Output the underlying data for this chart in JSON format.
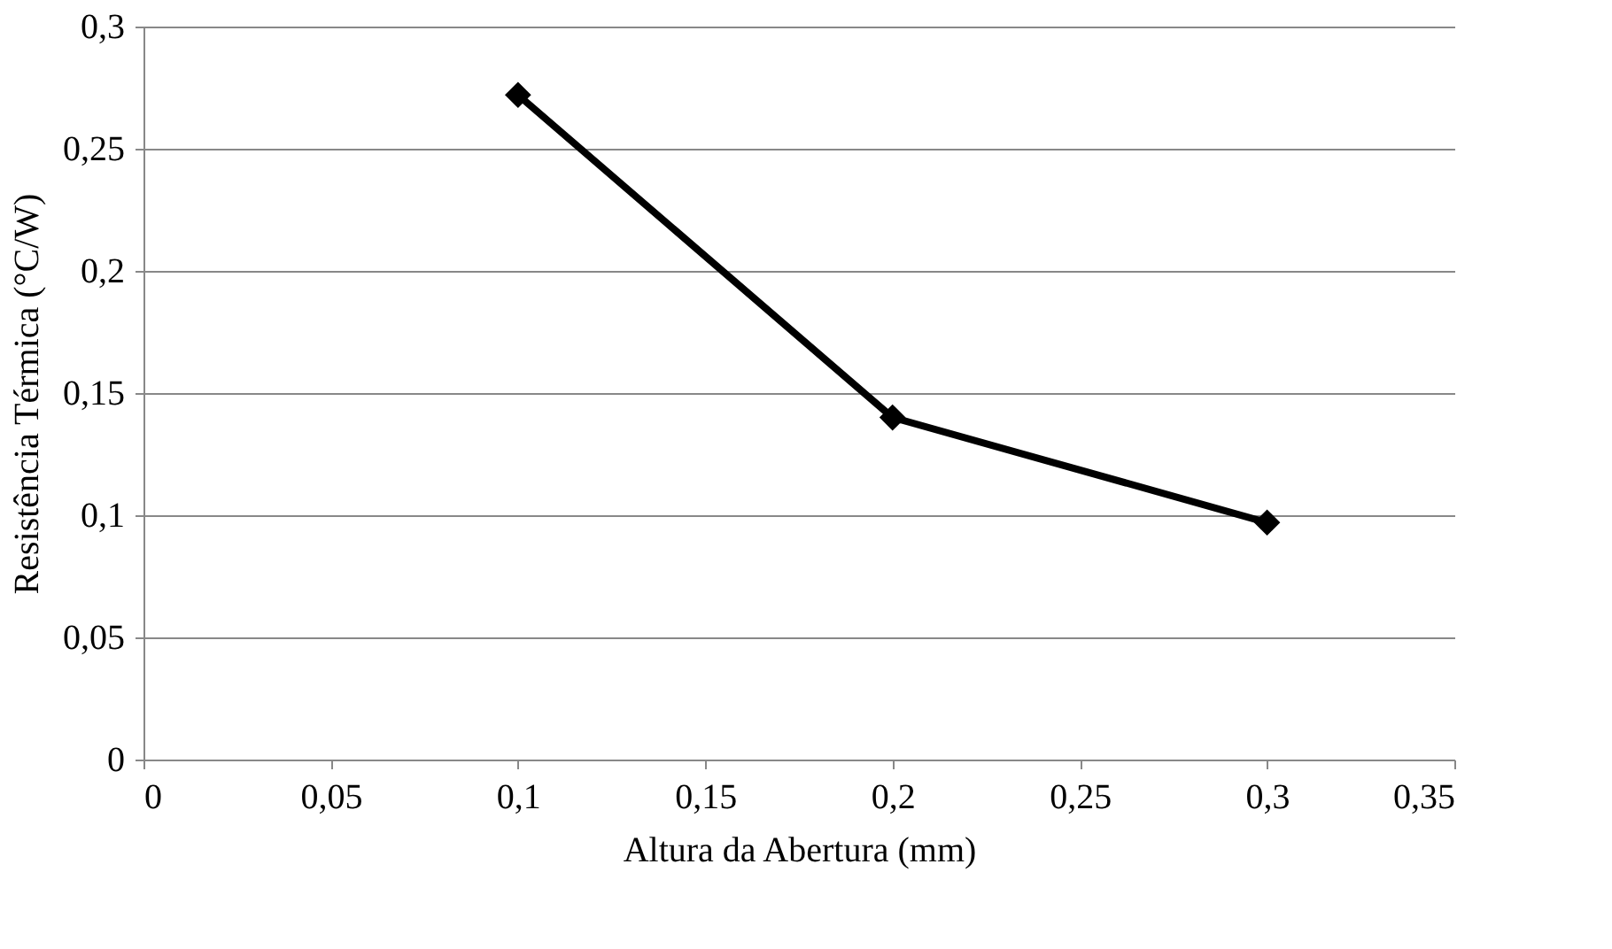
{
  "chart_data": {
    "type": "line",
    "xlabel": "Altura da Abertura (mm)",
    "ylabel": "Resistência Térmica (°C/W)",
    "x": [
      0.1,
      0.2,
      0.3
    ],
    "series": [
      {
        "color": "#000000",
        "values": [
          0.272,
          0.14,
          0.097
        ]
      }
    ],
    "xlim": [
      0,
      0.35
    ],
    "ylim": [
      0,
      0.3
    ],
    "xticks": [
      0,
      {
        "value": 0.05,
        "label": "0,05"
      },
      {
        "value": 0.1,
        "label": "0,1"
      },
      {
        "value": 0.15,
        "label": "0,15"
      },
      {
        "value": 0.2,
        "label": "0,2"
      },
      {
        "value": 0.25,
        "label": "0,25"
      },
      {
        "value": 0.3,
        "label": "0,3"
      },
      {
        "value": 0.35,
        "label": "0,35"
      }
    ],
    "yticks": [
      0,
      {
        "value": 0.05,
        "label": "0,05"
      },
      {
        "value": 0.1,
        "label": "0,1"
      },
      {
        "value": 0.15,
        "label": "0,15"
      },
      {
        "value": 0.2,
        "label": "0,2"
      },
      {
        "value": 0.25,
        "label": "0,25"
      },
      {
        "value": 0.3,
        "label": "0,3"
      }
    ],
    "grid": "y",
    "marker": "diamond",
    "line_style": "solid"
  }
}
